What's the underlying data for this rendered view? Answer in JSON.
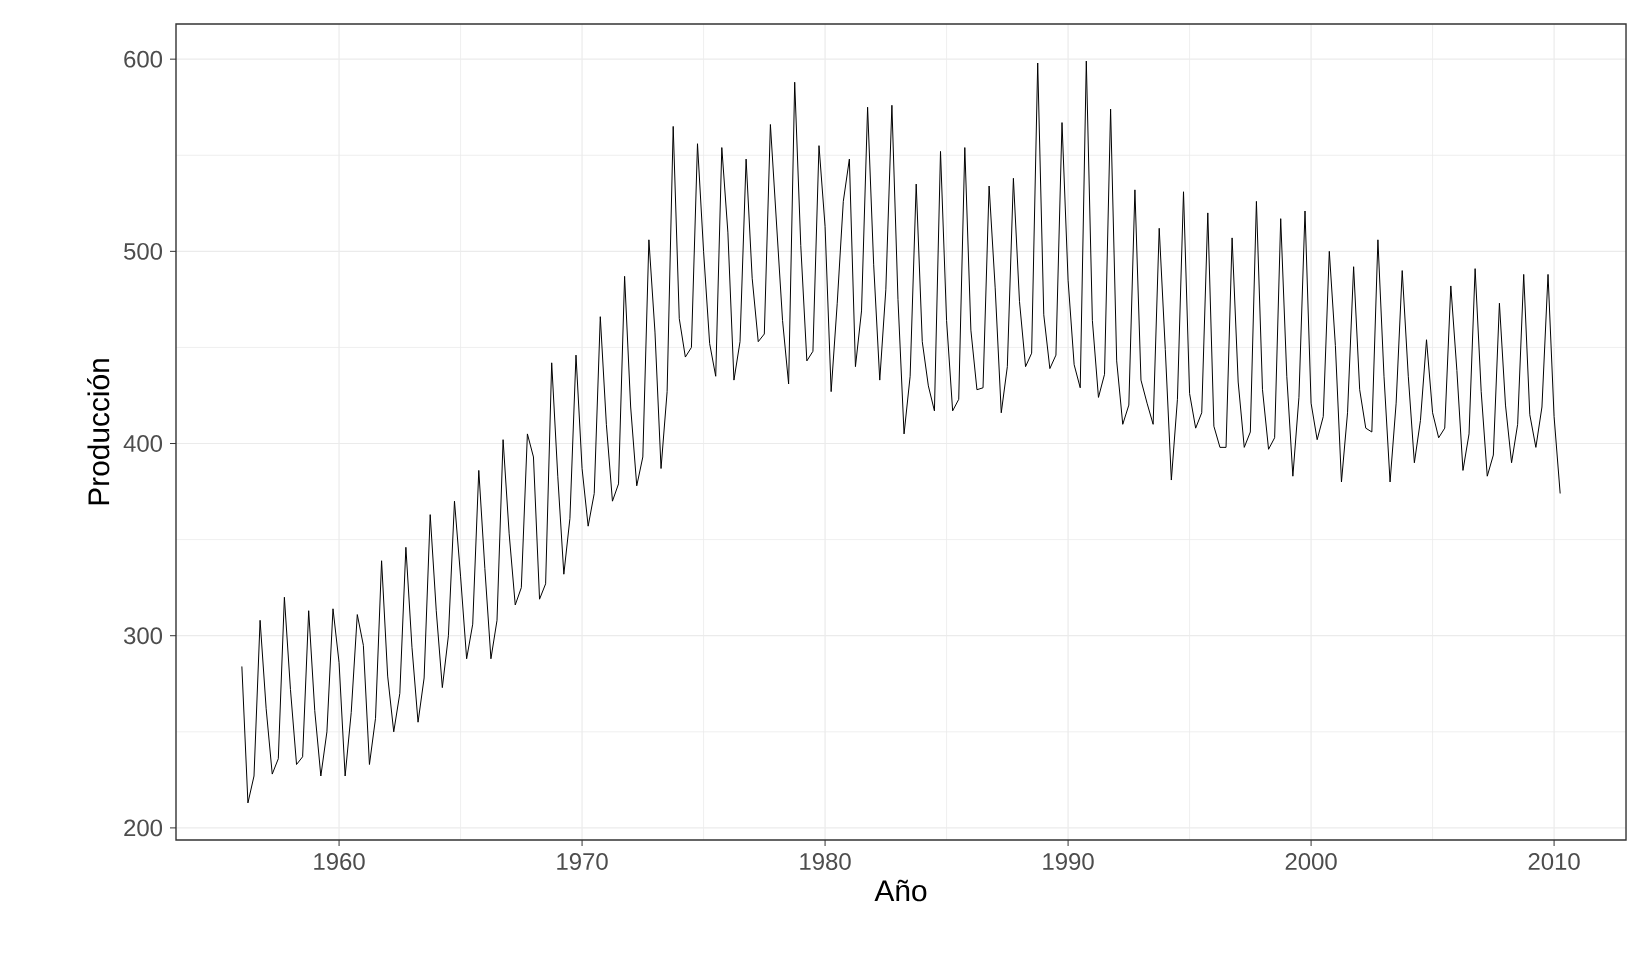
{
  "chart_data": {
    "type": "line",
    "xlabel": "Año",
    "ylabel": "Producción",
    "grid": true,
    "xlim": [
      1953.29,
      2012.96
    ],
    "ylim": [
      193.7,
      618.3
    ],
    "xticks": [
      1960,
      1970,
      1980,
      1990,
      2000,
      2010
    ],
    "yticks": [
      200,
      300,
      400,
      500,
      600
    ],
    "x": [
      1956,
      1956.25,
      1956.5,
      1956.75,
      1957,
      1957.25,
      1957.5,
      1957.75,
      1958,
      1958.25,
      1958.5,
      1958.75,
      1959,
      1959.25,
      1959.5,
      1959.75,
      1960,
      1960.25,
      1960.5,
      1960.75,
      1961,
      1961.25,
      1961.5,
      1961.75,
      1962,
      1962.25,
      1962.5,
      1962.75,
      1963,
      1963.25,
      1963.5,
      1963.75,
      1964,
      1964.25,
      1964.5,
      1964.75,
      1965,
      1965.25,
      1965.5,
      1965.75,
      1966,
      1966.25,
      1966.5,
      1966.75,
      1967,
      1967.25,
      1967.5,
      1967.75,
      1968,
      1968.25,
      1968.5,
      1968.75,
      1969,
      1969.25,
      1969.5,
      1969.75,
      1970,
      1970.25,
      1970.5,
      1970.75,
      1971,
      1971.25,
      1971.5,
      1971.75,
      1972,
      1972.25,
      1972.5,
      1972.75,
      1973,
      1973.25,
      1973.5,
      1973.75,
      1974,
      1974.25,
      1974.5,
      1974.75,
      1975,
      1975.25,
      1975.5,
      1975.75,
      1976,
      1976.25,
      1976.5,
      1976.75,
      1977,
      1977.25,
      1977.5,
      1977.75,
      1978,
      1978.25,
      1978.5,
      1978.75,
      1979,
      1979.25,
      1979.5,
      1979.75,
      1980,
      1980.25,
      1980.5,
      1980.75,
      1981,
      1981.25,
      1981.5,
      1981.75,
      1982,
      1982.25,
      1982.5,
      1982.75,
      1983,
      1983.25,
      1983.5,
      1983.75,
      1984,
      1984.25,
      1984.5,
      1984.75,
      1985,
      1985.25,
      1985.5,
      1985.75,
      1986,
      1986.25,
      1986.5,
      1986.75,
      1987,
      1987.25,
      1987.5,
      1987.75,
      1988,
      1988.25,
      1988.5,
      1988.75,
      1989,
      1989.25,
      1989.5,
      1989.75,
      1990,
      1990.25,
      1990.5,
      1990.75,
      1991,
      1991.25,
      1991.5,
      1991.75,
      1992,
      1992.25,
      1992.5,
      1992.75,
      1993,
      1993.25,
      1993.5,
      1993.75,
      1994,
      1994.25,
      1994.5,
      1994.75,
      1995,
      1995.25,
      1995.5,
      1995.75,
      1996,
      1996.25,
      1996.5,
      1996.75,
      1997,
      1997.25,
      1997.5,
      1997.75,
      1998,
      1998.25,
      1998.5,
      1998.75,
      1999,
      1999.25,
      1999.5,
      1999.75,
      2000,
      2000.25,
      2000.5,
      2000.75,
      2001,
      2001.25,
      2001.5,
      2001.75,
      2002,
      2002.25,
      2002.5,
      2002.75,
      2003,
      2003.25,
      2003.5,
      2003.75,
      2004,
      2004.25,
      2004.5,
      2004.75,
      2005,
      2005.25,
      2005.5,
      2005.75,
      2006,
      2006.25,
      2006.5,
      2006.75,
      2007,
      2007.25,
      2007.5,
      2007.75,
      2008,
      2008.25,
      2008.5,
      2008.75,
      2009,
      2009.25,
      2009.5,
      2009.75,
      2010,
      2010.25
    ],
    "series": [
      {
        "color": "#000000",
        "values": [
          284,
          213,
          227,
          308,
          262,
          228,
          236,
          320,
          272,
          233,
          237,
          313,
          261,
          227,
          250,
          314,
          286,
          227,
          260,
          311,
          295,
          233,
          257,
          339,
          279,
          250,
          270,
          346,
          294,
          255,
          278,
          363,
          313,
          273,
          300,
          370,
          331,
          288,
          306,
          386,
          335,
          288,
          308,
          402,
          353,
          316,
          325,
          405,
          393,
          319,
          327,
          442,
          383,
          332,
          361,
          446,
          387,
          357,
          374,
          466,
          410,
          370,
          379,
          487,
          419,
          378,
          393,
          506,
          458,
          387,
          427,
          565,
          465,
          445,
          450,
          556,
          500,
          452,
          435,
          554,
          510,
          433,
          453,
          548,
          486,
          453,
          457,
          566,
          515,
          464,
          431,
          588,
          503,
          443,
          448,
          555,
          513,
          427,
          473,
          526,
          548,
          440,
          469,
          575,
          493,
          433,
          480,
          576,
          475,
          405,
          435,
          535,
          453,
          430,
          417,
          552,
          464,
          417,
          423,
          554,
          459,
          428,
          429,
          534,
          481,
          416,
          440,
          538,
          474,
          440,
          447,
          598,
          467,
          439,
          446,
          567,
          485,
          441,
          429,
          599,
          464,
          424,
          436,
          574,
          443,
          410,
          420,
          532,
          433,
          421,
          410,
          512,
          449,
          381,
          423,
          531,
          426,
          408,
          416,
          520,
          409,
          398,
          398,
          507,
          432,
          398,
          406,
          526,
          428,
          397,
          403,
          517,
          435,
          383,
          424,
          521,
          421,
          402,
          414,
          500,
          451,
          380,
          416,
          492,
          428,
          408,
          406,
          506,
          435,
          380,
          421,
          490,
          435,
          390,
          412,
          454,
          416,
          403,
          408,
          482,
          438,
          386,
          405,
          491,
          427,
          383,
          394,
          473,
          420,
          390,
          410,
          488,
          415,
          398,
          419,
          488,
          414,
          374
        ]
      }
    ]
  }
}
